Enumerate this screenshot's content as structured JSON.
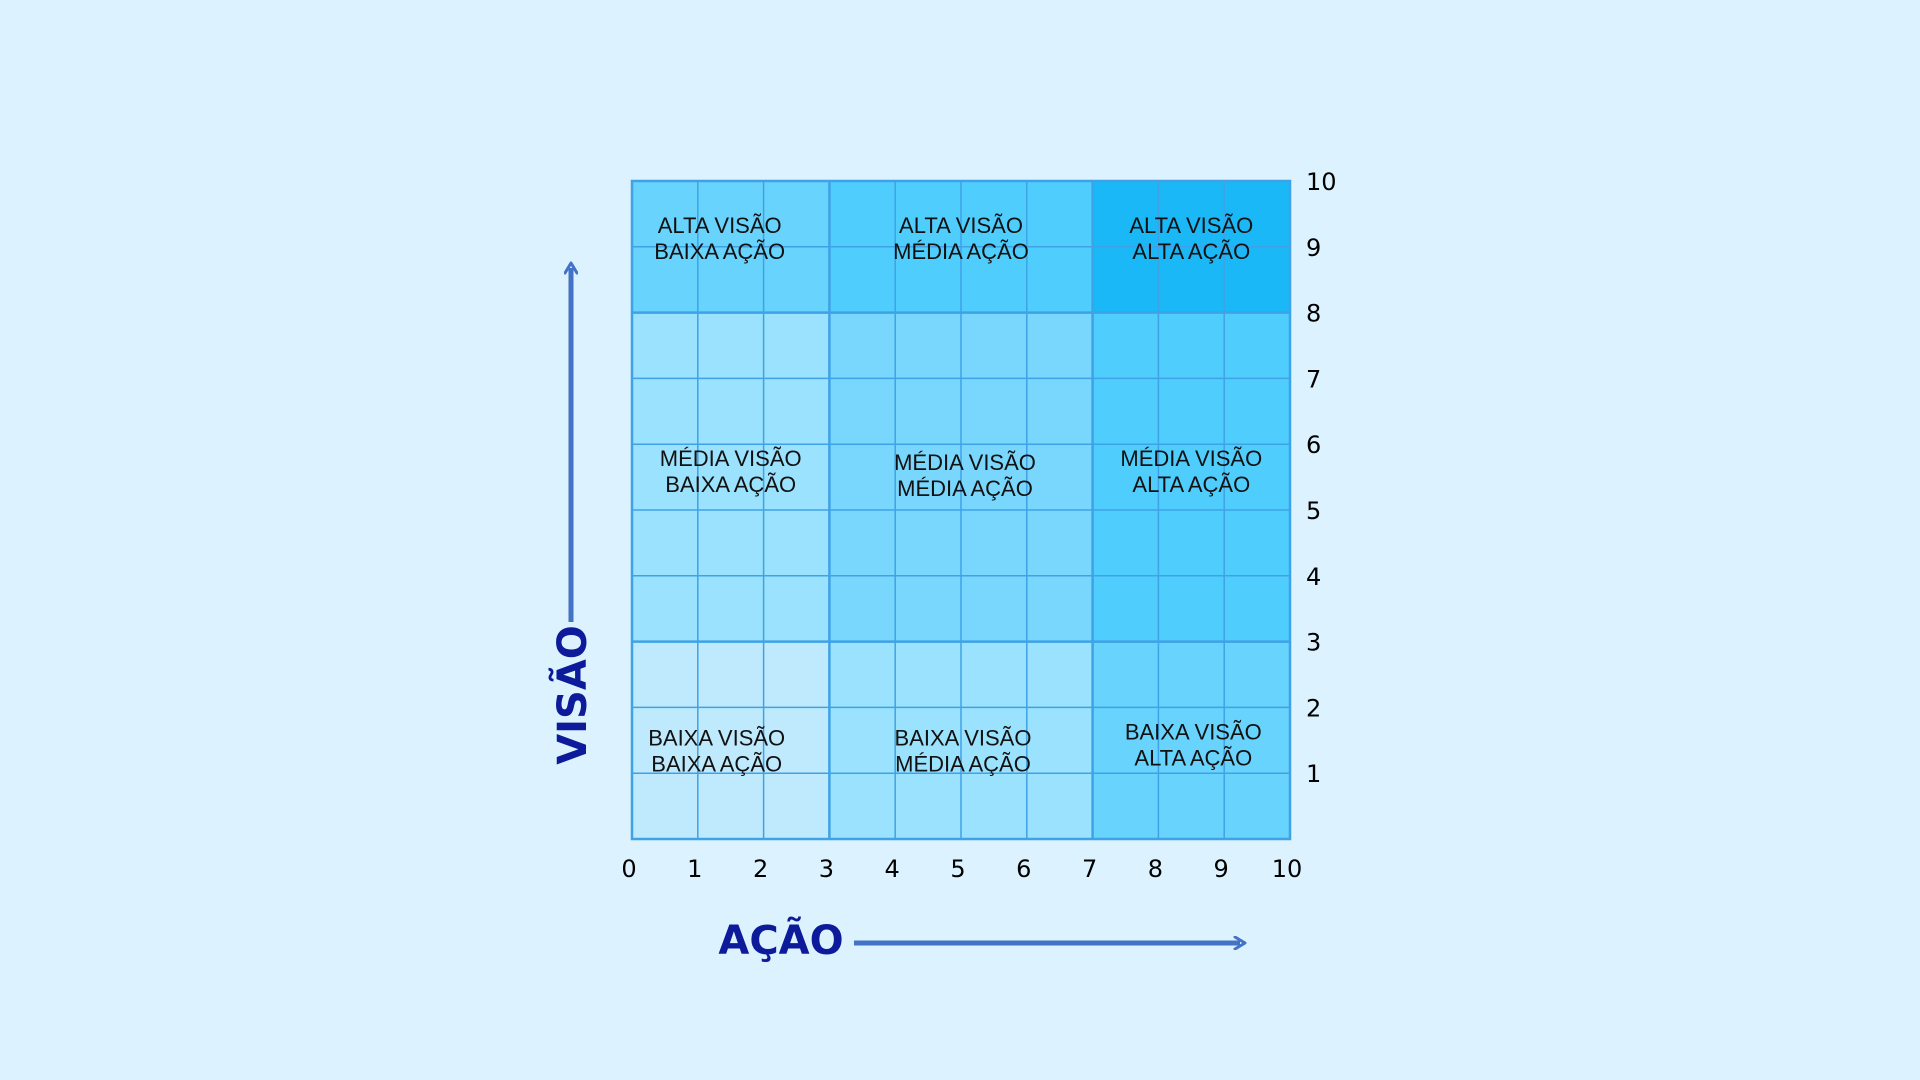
{
  "axes": {
    "x_title": "AÇÃO",
    "y_title": "VISÃO",
    "x_ticks": [
      "0",
      "1",
      "2",
      "3",
      "4",
      "5",
      "6",
      "7",
      "8",
      "9",
      "10"
    ],
    "y_ticks": [
      "1",
      "2",
      "3",
      "4",
      "5",
      "6",
      "7",
      "8",
      "9",
      "10"
    ],
    "title_color": "#0d1a9a",
    "arrow_color": "#4472c4"
  },
  "grid": {
    "line_color": "#3fa2e6",
    "x_bands": [
      [
        0,
        3
      ],
      [
        3,
        7
      ],
      [
        7,
        10
      ]
    ],
    "y_bands": [
      [
        0,
        3
      ],
      [
        3,
        8
      ],
      [
        8,
        10
      ]
    ]
  },
  "zones": [
    {
      "id": "baixa-visao-baixa-acao",
      "line1": "BAIXA VISÃO",
      "line2": "BAIXA AÇÃO",
      "color": "#bfeafd"
    },
    {
      "id": "baixa-visao-media-acao",
      "line1": "BAIXA VISÃO",
      "line2": "MÉDIA AÇÃO",
      "color": "#9ae2fd"
    },
    {
      "id": "baixa-visao-alta-acao",
      "line1": "BAIXA VISÃO",
      "line2": "ALTA AÇÃO",
      "color": "#68d3fc"
    },
    {
      "id": "media-visao-baixa-acao",
      "line1": "MÉDIA VISÃO",
      "line2": "BAIXA AÇÃO",
      "color": "#9ae2fd"
    },
    {
      "id": "media-visao-media-acao",
      "line1": "MÉDIA VISÃO",
      "line2": "MÉDIA AÇÃO",
      "color": "#79d6fd"
    },
    {
      "id": "media-visao-alta-acao",
      "line1": "MÉDIA VISÃO",
      "line2": "ALTA AÇÃO",
      "color": "#4fcefd"
    },
    {
      "id": "alta-visao-baixa-acao",
      "line1": "ALTA VISÃO",
      "line2": "BAIXA AÇÃO",
      "color": "#68d3fc"
    },
    {
      "id": "alta-visao-media-acao",
      "line1": "ALTA VISÃO",
      "line2": "MÉDIA AÇÃO",
      "color": "#4fcefd"
    },
    {
      "id": "alta-visao-alta-acao",
      "line1": "ALTA VISÃO",
      "line2": "ALTA AÇÃO",
      "color": "#1ab8f7"
    }
  ]
}
